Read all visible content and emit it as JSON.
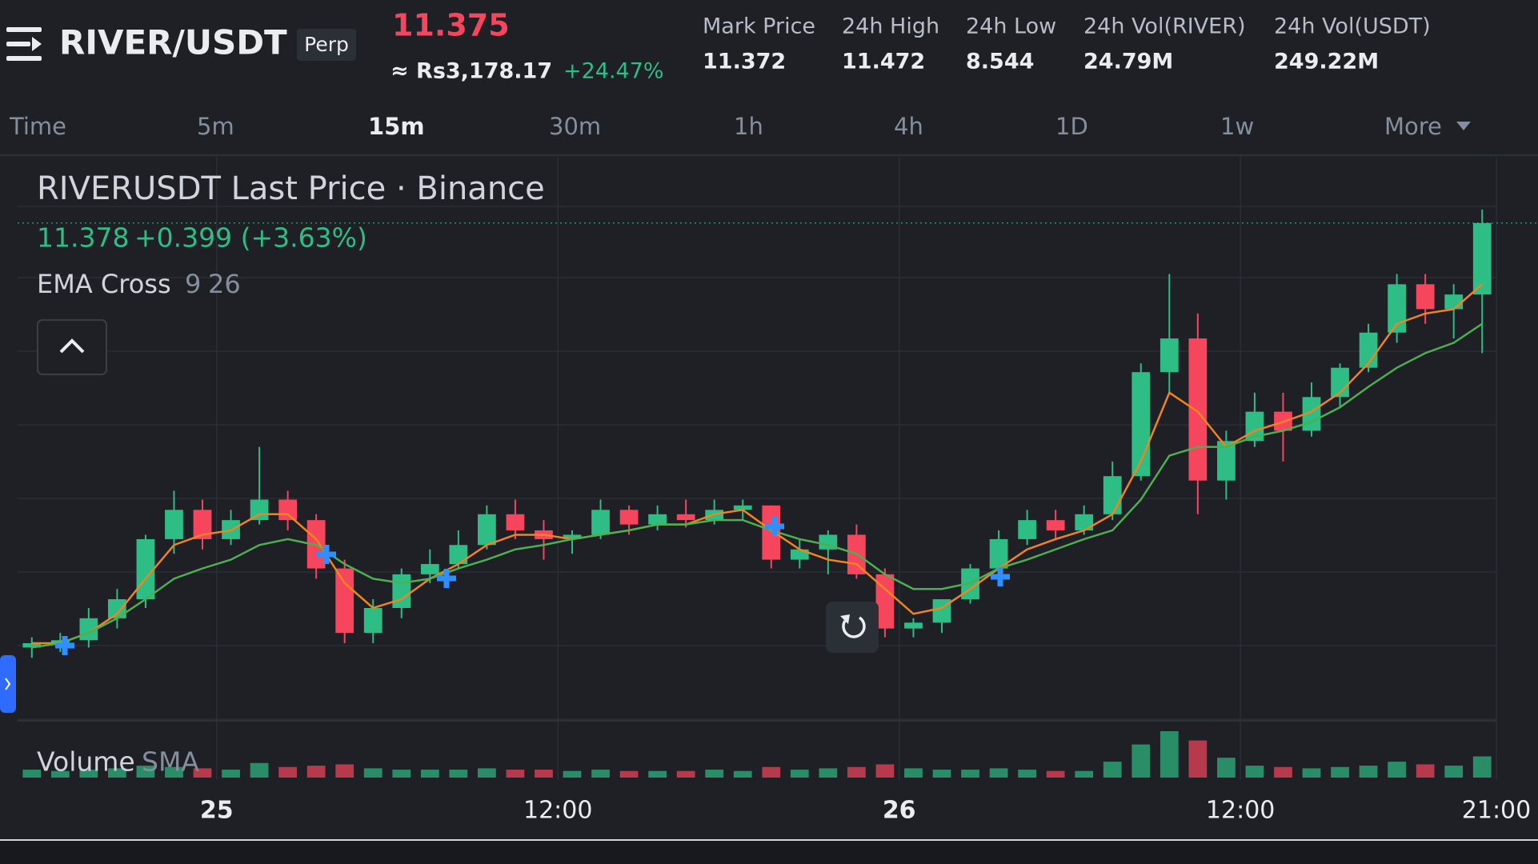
{
  "header": {
    "symbol": "RIVER/USDT",
    "contract": "Perp",
    "price": "11.375",
    "price_local": "≈ Rs3,178.17",
    "change_24h": "+24.47%",
    "stats": [
      {
        "label": "Mark Price",
        "value": "11.372"
      },
      {
        "label": "24h High",
        "value": "11.472"
      },
      {
        "label": "24h Low",
        "value": "8.544"
      },
      {
        "label": "24h Vol(RIVER)",
        "value": "24.79M"
      },
      {
        "label": "24h Vol(USDT)",
        "value": "249.22M"
      }
    ]
  },
  "intervals": [
    "Time",
    "5m",
    "15m",
    "30m",
    "1h",
    "4h",
    "1D",
    "1w",
    "More"
  ],
  "selected_interval": 2,
  "chart_data": {
    "type": "candlestick",
    "title": "RIVERUSDT Last Price · Binance",
    "last_price": 11.378,
    "change": "+0.399 (+3.63%)",
    "indicator": "EMA Cross",
    "up_color": "#2ebd85",
    "down_color": "#f6465d",
    "ylim": [
      7.98,
      11.83
    ],
    "xlim": [
      0,
      52
    ],
    "xticks": [
      {
        "value": 7,
        "label": "25"
      },
      {
        "value": 19,
        "label": "12:00"
      },
      {
        "value": 31,
        "label": "26"
      },
      {
        "value": 43,
        "label": "12:00"
      },
      {
        "value": 52,
        "label": "21:00"
      }
    ],
    "candles": {
      "open": [
        8.48,
        8.51,
        8.53,
        8.68,
        8.81,
        9.22,
        9.42,
        9.22,
        9.35,
        9.49,
        9.35,
        9.02,
        8.58,
        8.75,
        8.98,
        9.05,
        9.18,
        9.39,
        9.28,
        9.22,
        9.25,
        9.42,
        9.32,
        9.39,
        9.35,
        9.42,
        9.45,
        9.08,
        9.15,
        9.25,
        8.98,
        8.61,
        8.65,
        8.81,
        9.02,
        9.22,
        9.35,
        9.28,
        9.39,
        9.65,
        10.36,
        10.59,
        9.62,
        9.89,
        10.09,
        9.96,
        10.19,
        10.39,
        10.63,
        10.96,
        10.79,
        10.89
      ],
      "high": [
        8.55,
        8.58,
        8.75,
        8.88,
        9.25,
        9.55,
        9.49,
        9.42,
        9.85,
        9.55,
        9.39,
        9.08,
        8.81,
        9.02,
        9.15,
        9.28,
        9.45,
        9.49,
        9.35,
        9.28,
        9.49,
        9.45,
        9.45,
        9.49,
        9.49,
        9.49,
        9.45,
        9.22,
        9.28,
        9.32,
        9.02,
        8.68,
        8.81,
        9.05,
        9.28,
        9.42,
        9.42,
        9.45,
        9.75,
        10.42,
        11.03,
        10.76,
        9.96,
        10.22,
        10.22,
        10.29,
        10.42,
        10.69,
        11.03,
        11.03,
        10.96,
        11.47
      ],
      "low": [
        8.41,
        8.45,
        8.48,
        8.61,
        8.75,
        9.12,
        9.15,
        9.18,
        9.32,
        9.28,
        8.95,
        8.51,
        8.51,
        8.68,
        8.92,
        9.02,
        9.15,
        9.22,
        9.08,
        9.12,
        9.22,
        9.25,
        9.28,
        9.3,
        9.32,
        9.35,
        9.02,
        9.02,
        8.98,
        8.95,
        8.55,
        8.55,
        8.58,
        8.78,
        8.98,
        9.18,
        9.22,
        9.25,
        9.35,
        9.62,
        10.22,
        9.39,
        9.49,
        9.85,
        9.75,
        9.92,
        10.12,
        10.36,
        10.56,
        10.69,
        10.59,
        10.49
      ],
      "close": [
        8.51,
        8.53,
        8.68,
        8.81,
        9.22,
        9.42,
        9.22,
        9.35,
        9.49,
        9.35,
        9.02,
        8.58,
        8.75,
        8.98,
        9.05,
        9.18,
        9.39,
        9.28,
        9.22,
        9.25,
        9.42,
        9.32,
        9.39,
        9.35,
        9.42,
        9.45,
        9.08,
        9.15,
        9.25,
        8.98,
        8.61,
        8.65,
        8.81,
        9.02,
        9.22,
        9.35,
        9.28,
        9.39,
        9.65,
        10.36,
        10.59,
        9.62,
        9.89,
        10.09,
        9.96,
        10.19,
        10.39,
        10.63,
        10.96,
        10.79,
        10.89,
        11.378
      ]
    },
    "series": [
      {
        "name": "9",
        "color": "#f0841e",
        "values": [
          8.51,
          8.51,
          8.58,
          8.71,
          8.95,
          9.18,
          9.25,
          9.28,
          9.39,
          9.39,
          9.22,
          8.92,
          8.75,
          8.81,
          8.95,
          9.05,
          9.18,
          9.25,
          9.25,
          9.22,
          9.25,
          9.28,
          9.32,
          9.32,
          9.39,
          9.42,
          9.28,
          9.15,
          9.08,
          9.05,
          8.88,
          8.71,
          8.75,
          8.88,
          9.02,
          9.15,
          9.22,
          9.28,
          9.39,
          9.75,
          10.22,
          10.09,
          9.85,
          9.96,
          10.02,
          10.09,
          10.22,
          10.42,
          10.69,
          10.76,
          10.79,
          10.96
        ]
      },
      {
        "name": "26",
        "color": "#4caf50",
        "values": [
          8.48,
          8.51,
          8.58,
          8.68,
          8.81,
          8.95,
          9.02,
          9.08,
          9.18,
          9.22,
          9.18,
          9.05,
          8.95,
          8.92,
          8.95,
          9.02,
          9.08,
          9.15,
          9.18,
          9.22,
          9.25,
          9.28,
          9.32,
          9.32,
          9.35,
          9.35,
          9.28,
          9.22,
          9.18,
          9.12,
          8.98,
          8.88,
          8.88,
          8.92,
          9.02,
          9.08,
          9.15,
          9.22,
          9.28,
          9.49,
          9.79,
          9.85,
          9.85,
          9.92,
          9.96,
          10.02,
          10.12,
          10.26,
          10.39,
          10.49,
          10.56,
          10.69
        ]
      }
    ],
    "volume_title": "Volume",
    "volume_indicator": "SMA",
    "volume": [
      0.6,
      0.5,
      0.6,
      0.7,
      0.9,
      0.8,
      0.7,
      0.6,
      1.1,
      0.8,
      0.9,
      1.0,
      0.7,
      0.6,
      0.6,
      0.6,
      0.7,
      0.6,
      0.6,
      0.5,
      0.6,
      0.5,
      0.5,
      0.5,
      0.6,
      0.5,
      0.8,
      0.6,
      0.7,
      0.8,
      1.0,
      0.7,
      0.6,
      0.6,
      0.7,
      0.6,
      0.5,
      0.5,
      1.2,
      2.5,
      3.5,
      2.8,
      1.5,
      0.9,
      0.8,
      0.7,
      0.8,
      0.9,
      1.2,
      1.0,
      0.9,
      1.6
    ]
  }
}
